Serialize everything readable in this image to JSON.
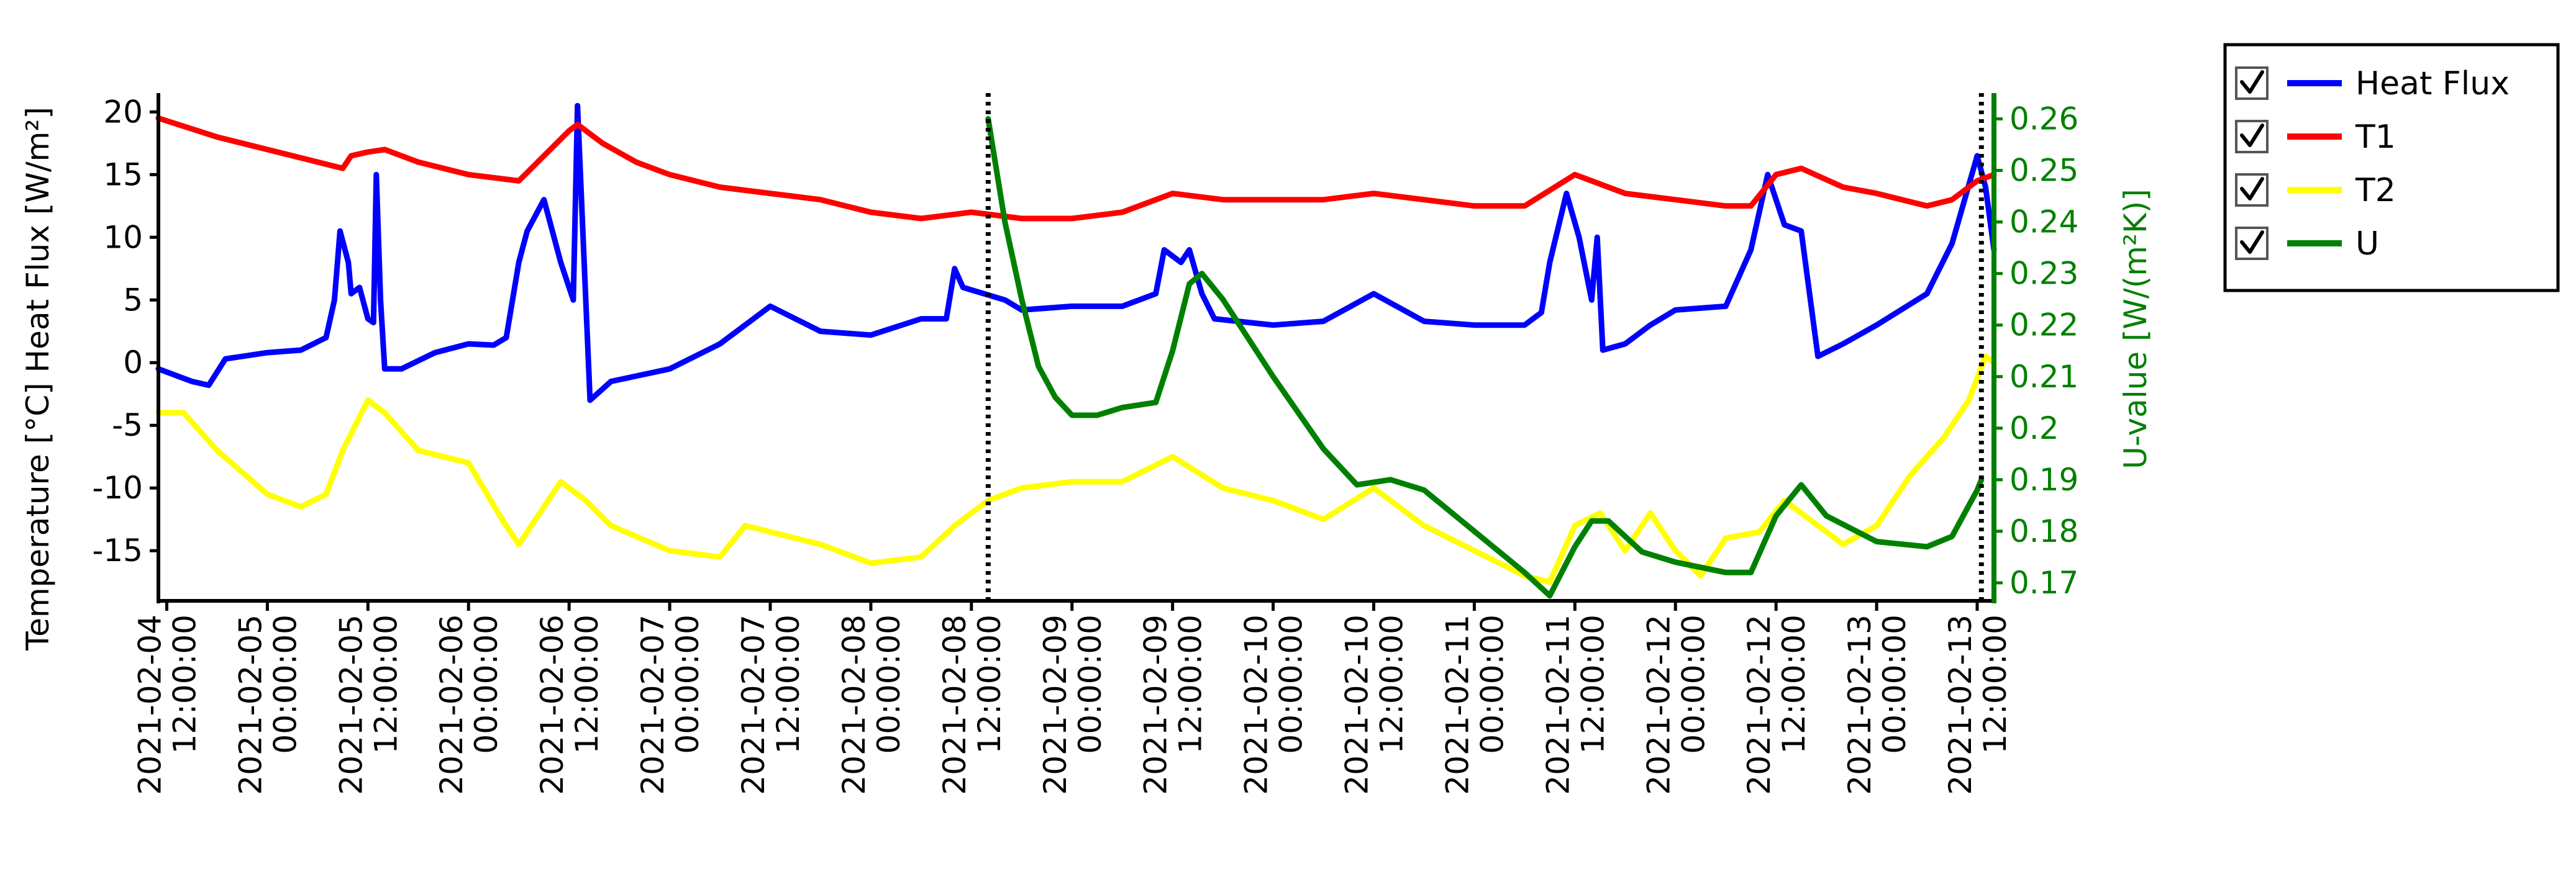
{
  "chart_data": {
    "type": "line",
    "x_unit": "datetime",
    "x_ticks": [
      "2021-02-04 12:00:00",
      "2021-02-05 00:00:00",
      "2021-02-05 12:00:00",
      "2021-02-06 00:00:00",
      "2021-02-06 12:00:00",
      "2021-02-07 00:00:00",
      "2021-02-07 12:00:00",
      "2021-02-08 00:00:00",
      "2021-02-08 12:00:00",
      "2021-02-09 00:00:00",
      "2021-02-09 12:00:00",
      "2021-02-10 00:00:00",
      "2021-02-10 12:00:00",
      "2021-02-11 00:00:00",
      "2021-02-11 12:00:00",
      "2021-02-12 00:00:00",
      "2021-02-12 12:00:00",
      "2021-02-13 00:00:00",
      "2021-02-13 12:00:00"
    ],
    "xlim": [
      "2021-02-04 11:00:00",
      "2021-02-13 14:00:00"
    ],
    "ylabel_left": "Temperature [°C] Heat Flux [W/m²]",
    "ylim_left": [
      -19,
      21.5
    ],
    "yticks_left": [
      -15,
      -10,
      -5,
      0,
      5,
      10,
      15,
      20
    ],
    "ylabel_right": "U-value [W/(m²K)]",
    "ylim_right": [
      0.1665,
      0.265
    ],
    "yticks_right": [
      0.17,
      0.18,
      0.19,
      0.2,
      0.21,
      0.22,
      0.23,
      0.24,
      0.25,
      0.26
    ],
    "vertical_markers": [
      "2021-02-08 14:00:00",
      "2021-02-13 12:30:00"
    ],
    "legend_position": "outside-right-top",
    "grid": false,
    "series": [
      {
        "name": "Heat Flux",
        "color": "#0000ff",
        "axis": "left",
        "points": [
          [
            "2021-02-04 11:00",
            -0.5
          ],
          [
            "2021-02-04 15:00",
            -1.5
          ],
          [
            "2021-02-04 17:00",
            -1.8
          ],
          [
            "2021-02-04 19:00",
            0.3
          ],
          [
            "2021-02-05 00:00",
            0.8
          ],
          [
            "2021-02-05 04:00",
            1.0
          ],
          [
            "2021-02-05 07:00",
            2.0
          ],
          [
            "2021-02-05 08:00",
            5.0
          ],
          [
            "2021-02-05 08:40",
            10.5
          ],
          [
            "2021-02-05 09:40",
            8.0
          ],
          [
            "2021-02-05 10:00",
            5.5
          ],
          [
            "2021-02-05 11:00",
            6.0
          ],
          [
            "2021-02-05 12:00",
            3.5
          ],
          [
            "2021-02-05 12:40",
            3.2
          ],
          [
            "2021-02-05 13:00",
            15.0
          ],
          [
            "2021-02-05 13:30",
            5.0
          ],
          [
            "2021-02-05 14:00",
            -0.5
          ],
          [
            "2021-02-05 16:00",
            -0.5
          ],
          [
            "2021-02-05 20:00",
            0.8
          ],
          [
            "2021-02-06 00:00",
            1.5
          ],
          [
            "2021-02-06 03:00",
            1.4
          ],
          [
            "2021-02-06 04:30",
            2.0
          ],
          [
            "2021-02-06 06:00",
            8.0
          ],
          [
            "2021-02-06 07:00",
            10.5
          ],
          [
            "2021-02-06 09:00",
            13.0
          ],
          [
            "2021-02-06 11:00",
            8.0
          ],
          [
            "2021-02-06 12:30",
            5.0
          ],
          [
            "2021-02-06 13:00",
            20.5
          ],
          [
            "2021-02-06 13:40",
            10.0
          ],
          [
            "2021-02-06 14:30",
            -3.0
          ],
          [
            "2021-02-06 17:00",
            -1.5
          ],
          [
            "2021-02-07 00:00",
            -0.5
          ],
          [
            "2021-02-07 06:00",
            1.5
          ],
          [
            "2021-02-07 12:00",
            4.5
          ],
          [
            "2021-02-07 18:00",
            2.5
          ],
          [
            "2021-02-08 00:00",
            2.2
          ],
          [
            "2021-02-08 06:00",
            3.5
          ],
          [
            "2021-02-08 09:00",
            3.5
          ],
          [
            "2021-02-08 10:00",
            7.5
          ],
          [
            "2021-02-08 11:00",
            6.0
          ],
          [
            "2021-02-08 16:00",
            5.0
          ],
          [
            "2021-02-08 18:00",
            4.2
          ],
          [
            "2021-02-09 00:00",
            4.5
          ],
          [
            "2021-02-09 06:00",
            4.5
          ],
          [
            "2021-02-09 10:00",
            5.5
          ],
          [
            "2021-02-09 11:00",
            9.0
          ],
          [
            "2021-02-09 13:00",
            8.0
          ],
          [
            "2021-02-09 14:00",
            9.0
          ],
          [
            "2021-02-09 15:30",
            5.5
          ],
          [
            "2021-02-09 17:00",
            3.5
          ],
          [
            "2021-02-10 00:00",
            3.0
          ],
          [
            "2021-02-10 06:00",
            3.3
          ],
          [
            "2021-02-10 12:00",
            5.5
          ],
          [
            "2021-02-10 18:00",
            3.3
          ],
          [
            "2021-02-11 00:00",
            3.0
          ],
          [
            "2021-02-11 06:00",
            3.0
          ],
          [
            "2021-02-11 08:00",
            4.0
          ],
          [
            "2021-02-11 09:00",
            8.0
          ],
          [
            "2021-02-11 11:00",
            13.5
          ],
          [
            "2021-02-11 12:30",
            10.0
          ],
          [
            "2021-02-11 14:00",
            5.0
          ],
          [
            "2021-02-11 14:40",
            10.0
          ],
          [
            "2021-02-11 15:20",
            1.0
          ],
          [
            "2021-02-11 18:00",
            1.5
          ],
          [
            "2021-02-11 21:00",
            3.0
          ],
          [
            "2021-02-12 00:00",
            4.2
          ],
          [
            "2021-02-12 06:00",
            4.5
          ],
          [
            "2021-02-12 09:00",
            9.0
          ],
          [
            "2021-02-12 11:00",
            15.0
          ],
          [
            "2021-02-12 13:00",
            11.0
          ],
          [
            "2021-02-12 15:00",
            10.5
          ],
          [
            "2021-02-12 17:00",
            0.5
          ],
          [
            "2021-02-12 20:00",
            1.5
          ],
          [
            "2021-02-13 00:00",
            3.0
          ],
          [
            "2021-02-13 06:00",
            5.5
          ],
          [
            "2021-02-13 09:00",
            9.5
          ],
          [
            "2021-02-13 12:00",
            16.5
          ],
          [
            "2021-02-13 13:00",
            14.0
          ],
          [
            "2021-02-13 14:00",
            9.0
          ]
        ]
      },
      {
        "name": "T1",
        "color": "#ff0000",
        "axis": "left",
        "points": [
          [
            "2021-02-04 11:00",
            19.5
          ],
          [
            "2021-02-04 18:00",
            18.0
          ],
          [
            "2021-02-05 00:00",
            17.0
          ],
          [
            "2021-02-05 06:00",
            16.0
          ],
          [
            "2021-02-05 09:00",
            15.5
          ],
          [
            "2021-02-05 10:00",
            16.5
          ],
          [
            "2021-02-05 12:00",
            16.8
          ],
          [
            "2021-02-05 14:00",
            17.0
          ],
          [
            "2021-02-05 18:00",
            16.0
          ],
          [
            "2021-02-06 00:00",
            15.0
          ],
          [
            "2021-02-06 06:00",
            14.5
          ],
          [
            "2021-02-06 09:00",
            16.5
          ],
          [
            "2021-02-06 12:00",
            18.5
          ],
          [
            "2021-02-06 13:00",
            19.0
          ],
          [
            "2021-02-06 16:00",
            17.5
          ],
          [
            "2021-02-06 20:00",
            16.0
          ],
          [
            "2021-02-07 00:00",
            15.0
          ],
          [
            "2021-02-07 06:00",
            14.0
          ],
          [
            "2021-02-07 12:00",
            13.5
          ],
          [
            "2021-02-07 18:00",
            13.0
          ],
          [
            "2021-02-08 00:00",
            12.0
          ],
          [
            "2021-02-08 06:00",
            11.5
          ],
          [
            "2021-02-08 12:00",
            12.0
          ],
          [
            "2021-02-08 18:00",
            11.5
          ],
          [
            "2021-02-09 00:00",
            11.5
          ],
          [
            "2021-02-09 06:00",
            12.0
          ],
          [
            "2021-02-09 12:00",
            13.5
          ],
          [
            "2021-02-09 18:00",
            13.0
          ],
          [
            "2021-02-10 00:00",
            13.0
          ],
          [
            "2021-02-10 06:00",
            13.0
          ],
          [
            "2021-02-10 12:00",
            13.5
          ],
          [
            "2021-02-10 18:00",
            13.0
          ],
          [
            "2021-02-11 00:00",
            12.5
          ],
          [
            "2021-02-11 06:00",
            12.5
          ],
          [
            "2021-02-11 12:00",
            15.0
          ],
          [
            "2021-02-11 18:00",
            13.5
          ],
          [
            "2021-02-12 00:00",
            13.0
          ],
          [
            "2021-02-12 06:00",
            12.5
          ],
          [
            "2021-02-12 09:00",
            12.5
          ],
          [
            "2021-02-12 12:00",
            15.0
          ],
          [
            "2021-02-12 15:00",
            15.5
          ],
          [
            "2021-02-12 20:00",
            14.0
          ],
          [
            "2021-02-13 00:00",
            13.5
          ],
          [
            "2021-02-13 06:00",
            12.5
          ],
          [
            "2021-02-13 09:00",
            13.0
          ],
          [
            "2021-02-13 12:00",
            14.5
          ],
          [
            "2021-02-13 14:00",
            15.0
          ]
        ]
      },
      {
        "name": "T2",
        "color": "#ffff00",
        "axis": "left",
        "points": [
          [
            "2021-02-04 11:00",
            -4.0
          ],
          [
            "2021-02-04 14:00",
            -4.0
          ],
          [
            "2021-02-04 18:00",
            -7.0
          ],
          [
            "2021-02-05 00:00",
            -10.5
          ],
          [
            "2021-02-05 04:00",
            -11.5
          ],
          [
            "2021-02-05 07:00",
            -10.5
          ],
          [
            "2021-02-05 09:00",
            -7.0
          ],
          [
            "2021-02-05 12:00",
            -3.0
          ],
          [
            "2021-02-05 14:00",
            -4.0
          ],
          [
            "2021-02-05 18:00",
            -7.0
          ],
          [
            "2021-02-06 00:00",
            -8.0
          ],
          [
            "2021-02-06 04:00",
            -12.5
          ],
          [
            "2021-02-06 06:00",
            -14.5
          ],
          [
            "2021-02-06 09:00",
            -11.5
          ],
          [
            "2021-02-06 11:00",
            -9.5
          ],
          [
            "2021-02-06 14:00",
            -11.0
          ],
          [
            "2021-02-06 17:00",
            -13.0
          ],
          [
            "2021-02-07 00:00",
            -15.0
          ],
          [
            "2021-02-07 06:00",
            -15.5
          ],
          [
            "2021-02-07 09:00",
            -13.0
          ],
          [
            "2021-02-07 12:00",
            -13.5
          ],
          [
            "2021-02-07 18:00",
            -14.5
          ],
          [
            "2021-02-08 00:00",
            -16.0
          ],
          [
            "2021-02-08 06:00",
            -15.5
          ],
          [
            "2021-02-08 10:00",
            -13.0
          ],
          [
            "2021-02-08 14:00",
            -11.0
          ],
          [
            "2021-02-08 18:00",
            -10.0
          ],
          [
            "2021-02-09 00:00",
            -9.5
          ],
          [
            "2021-02-09 06:00",
            -9.5
          ],
          [
            "2021-02-09 12:00",
            -7.5
          ],
          [
            "2021-02-09 18:00",
            -10.0
          ],
          [
            "2021-02-10 00:00",
            -11.0
          ],
          [
            "2021-02-10 06:00",
            -12.5
          ],
          [
            "2021-02-10 12:00",
            -10.0
          ],
          [
            "2021-02-10 18:00",
            -13.0
          ],
          [
            "2021-02-11 00:00",
            -15.0
          ],
          [
            "2021-02-11 06:00",
            -17.0
          ],
          [
            "2021-02-11 09:00",
            -17.5
          ],
          [
            "2021-02-11 12:00",
            -13.0
          ],
          [
            "2021-02-11 15:00",
            -12.0
          ],
          [
            "2021-02-11 18:00",
            -15.0
          ],
          [
            "2021-02-11 21:00",
            -12.0
          ],
          [
            "2021-02-12 00:00",
            -15.0
          ],
          [
            "2021-02-12 03:00",
            -17.0
          ],
          [
            "2021-02-12 06:00",
            -14.0
          ],
          [
            "2021-02-12 10:00",
            -13.5
          ],
          [
            "2021-02-12 13:00",
            -11.0
          ],
          [
            "2021-02-12 16:00",
            -12.5
          ],
          [
            "2021-02-12 20:00",
            -14.5
          ],
          [
            "2021-02-13 00:00",
            -13.0
          ],
          [
            "2021-02-13 04:00",
            -9.0
          ],
          [
            "2021-02-13 08:00",
            -6.0
          ],
          [
            "2021-02-13 11:00",
            -3.0
          ],
          [
            "2021-02-13 13:00",
            0.5
          ],
          [
            "2021-02-13 14:00",
            0.0
          ]
        ]
      },
      {
        "name": "U",
        "color": "#008000",
        "axis": "right",
        "points": [
          [
            "2021-02-08 14:00",
            0.26
          ],
          [
            "2021-02-08 16:00",
            0.24
          ],
          [
            "2021-02-08 18:00",
            0.225
          ],
          [
            "2021-02-08 20:00",
            0.212
          ],
          [
            "2021-02-08 22:00",
            0.206
          ],
          [
            "2021-02-09 00:00",
            0.2025
          ],
          [
            "2021-02-09 03:00",
            0.2025
          ],
          [
            "2021-02-09 06:00",
            0.204
          ],
          [
            "2021-02-09 10:00",
            0.205
          ],
          [
            "2021-02-09 12:00",
            0.215
          ],
          [
            "2021-02-09 14:00",
            0.228
          ],
          [
            "2021-02-09 15:30",
            0.23
          ],
          [
            "2021-02-09 18:00",
            0.225
          ],
          [
            "2021-02-10 00:00",
            0.21
          ],
          [
            "2021-02-10 06:00",
            0.196
          ],
          [
            "2021-02-10 10:00",
            0.189
          ],
          [
            "2021-02-10 14:00",
            0.19
          ],
          [
            "2021-02-10 18:00",
            0.188
          ],
          [
            "2021-02-11 00:00",
            0.18
          ],
          [
            "2021-02-11 06:00",
            0.172
          ],
          [
            "2021-02-11 09:00",
            0.1675
          ],
          [
            "2021-02-11 12:00",
            0.177
          ],
          [
            "2021-02-11 14:00",
            0.182
          ],
          [
            "2021-02-11 16:00",
            0.182
          ],
          [
            "2021-02-11 20:00",
            0.176
          ],
          [
            "2021-02-12 00:00",
            0.174
          ],
          [
            "2021-02-12 06:00",
            0.172
          ],
          [
            "2021-02-12 09:00",
            0.172
          ],
          [
            "2021-02-12 12:00",
            0.183
          ],
          [
            "2021-02-12 15:00",
            0.189
          ],
          [
            "2021-02-12 18:00",
            0.183
          ],
          [
            "2021-02-13 00:00",
            0.178
          ],
          [
            "2021-02-13 06:00",
            0.177
          ],
          [
            "2021-02-13 09:00",
            0.179
          ],
          [
            "2021-02-13 12:00",
            0.188
          ],
          [
            "2021-02-13 12:30",
            0.19
          ]
        ]
      }
    ]
  },
  "legend": {
    "items": [
      {
        "label": "Heat Flux",
        "checked": true,
        "color": "#0000ff"
      },
      {
        "label": "T1",
        "checked": true,
        "color": "#ff0000"
      },
      {
        "label": "T2",
        "checked": true,
        "color": "#ffff00"
      },
      {
        "label": "U",
        "checked": true,
        "color": "#008000"
      }
    ]
  }
}
